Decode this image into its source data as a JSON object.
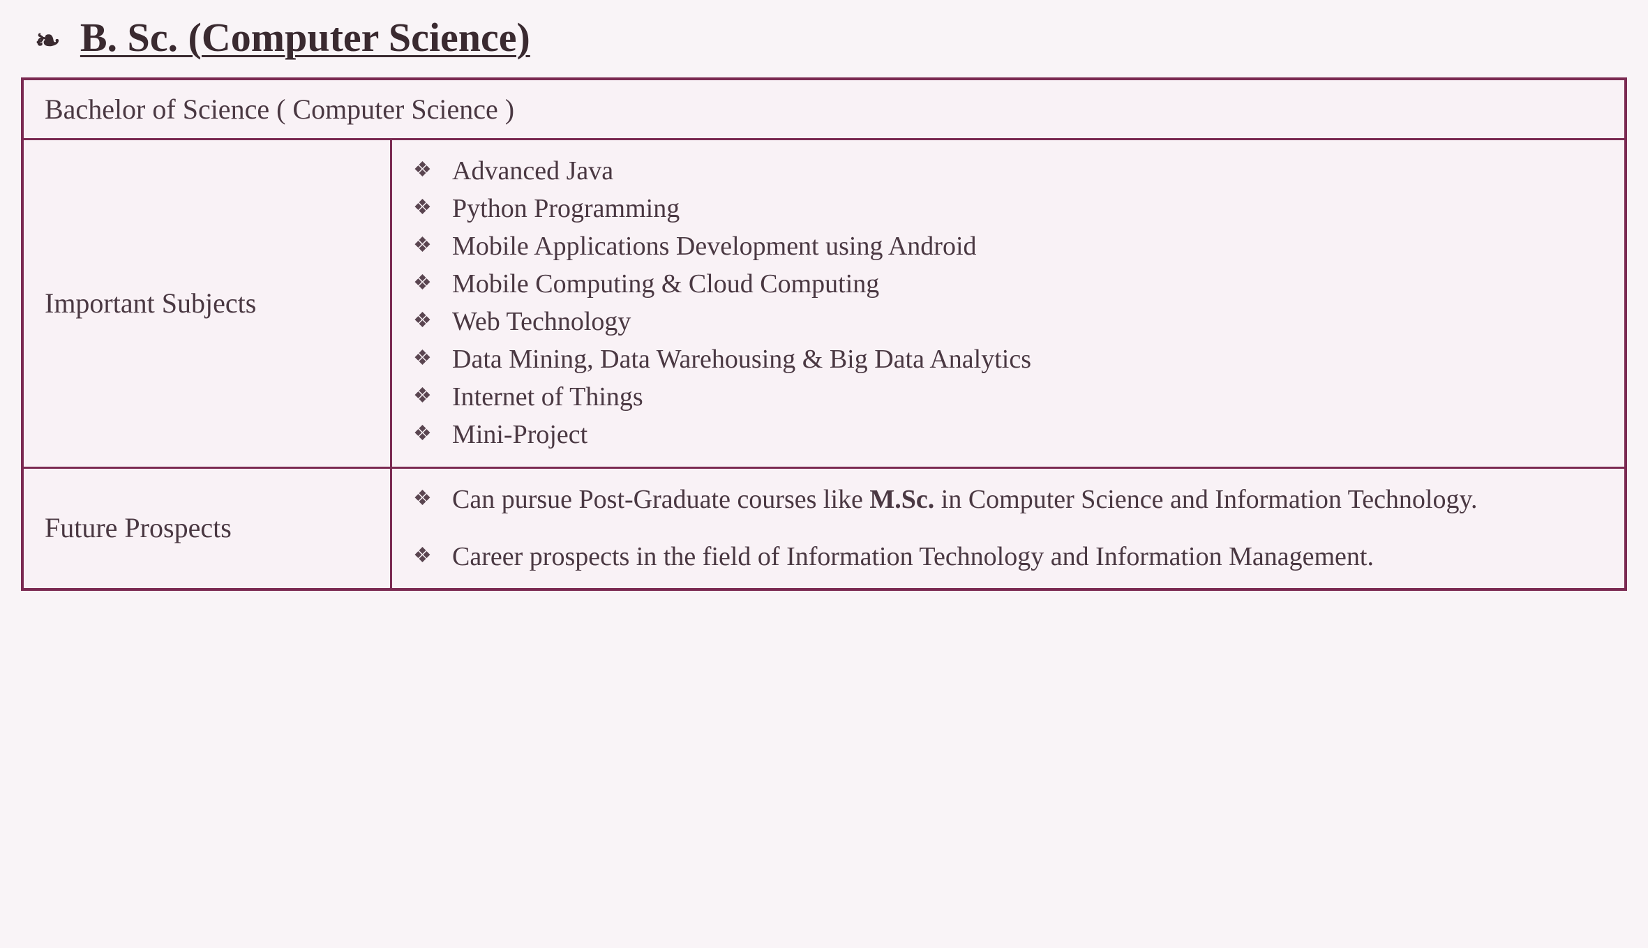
{
  "heading": {
    "bullet_ornament": "❧",
    "title": "B. Sc. (Computer Science)"
  },
  "table": {
    "full_title": "Bachelor of Science ( Computer Science )",
    "row1": {
      "label": "Important Subjects",
      "subjects": [
        "Advanced Java",
        "Python Programming",
        "Mobile Applications Development using Android",
        "Mobile Computing & Cloud Computing",
        "Web Technology",
        "Data Mining, Data Warehousing & Big Data Analytics",
        "Internet of Things",
        "Mini-Project"
      ]
    },
    "row2": {
      "label": "Future Prospects",
      "prospects": [
        {
          "pre": "Can pursue Post-Graduate courses like ",
          "bold": "M.Sc.",
          "post": " in Computer Science and Information Technology."
        },
        {
          "pre": "Career prospects in the field of Information Technology and Information Management.",
          "bold": "",
          "post": ""
        }
      ]
    }
  },
  "colors": {
    "border": "#7b2a52",
    "background": "#f9f4f7",
    "cell_background": "#f9f2f6",
    "text": "#4a3842",
    "heading_text": "#3a2a30"
  },
  "typography": {
    "heading_fontsize": 58,
    "full_title_fontsize": 44,
    "label_fontsize": 40,
    "list_fontsize": 38,
    "font_family": "Georgia, serif"
  },
  "layout": {
    "label_column_width_pct": 23,
    "border_width_outer": 4,
    "border_width_inner": 3
  }
}
